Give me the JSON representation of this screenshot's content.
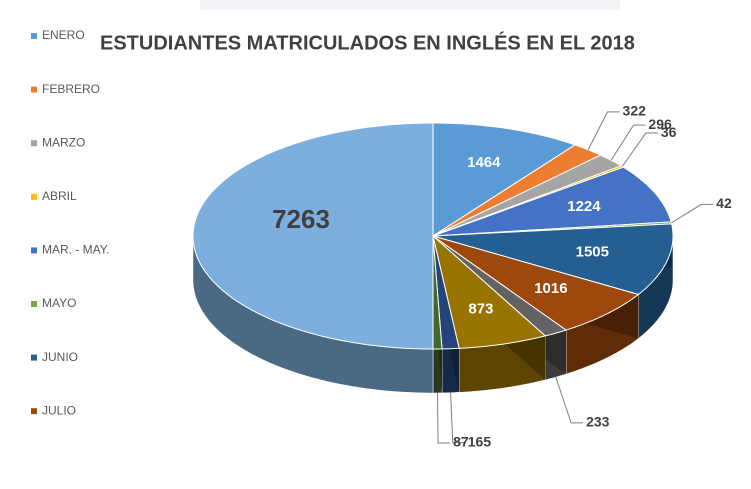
{
  "chart_data": {
    "type": "pie",
    "title": "ESTUDIANTES MATRICULADOS EN INGLÉS EN EL 2018",
    "categories": [
      "ENERO",
      "FEBRERO",
      "MARZO",
      "ABRIL",
      "MAR. - MAY.",
      "MAYO",
      "JUNIO",
      "JULIO",
      null,
      null,
      null,
      null,
      null
    ],
    "values": [
      1464,
      322,
      296,
      36,
      1224,
      42,
      1505,
      1016,
      233,
      873,
      165,
      87,
      7263
    ],
    "colors": [
      "#5b9bd5",
      "#ed7d31",
      "#a5a5a5",
      "#ffc000",
      "#4472c4",
      "#70ad47",
      "#255e91",
      "#9e480e",
      "#636363",
      "#997300",
      "#264478",
      "#43682b",
      "#7cafdd"
    ],
    "legend": "left"
  }
}
